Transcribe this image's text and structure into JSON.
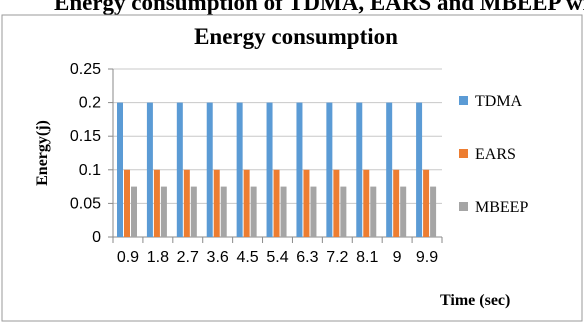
{
  "header_fragment": "Energy consumption of TDMA, EARS and MBEEP with respect to time (Energy",
  "chart_data": {
    "type": "bar",
    "title": "Energy consumption",
    "xlabel": "Time (sec)",
    "ylabel": "Energy(j)",
    "categories": [
      "0.9",
      "1.8",
      "2.7",
      "3.6",
      "4.5",
      "5.4",
      "6.3",
      "7.2",
      "8.1",
      "9",
      "9.9"
    ],
    "ylim": [
      0,
      0.25
    ],
    "yticks": [
      "0",
      "0.05",
      "0.1",
      "0.15",
      "0.2",
      "0.25"
    ],
    "grid": true,
    "legend_position": "right",
    "series": [
      {
        "name": "TDMA",
        "color": "#5b9bd5",
        "values": [
          0.2,
          0.2,
          0.2,
          0.2,
          0.2,
          0.2,
          0.2,
          0.2,
          0.2,
          0.2,
          0.2
        ]
      },
      {
        "name": "EARS",
        "color": "#ed7d31",
        "values": [
          0.1,
          0.1,
          0.1,
          0.1,
          0.1,
          0.1,
          0.1,
          0.1,
          0.1,
          0.1,
          0.1
        ]
      },
      {
        "name": "MBEEP",
        "color": "#a5a5a5",
        "values": [
          0.075,
          0.075,
          0.075,
          0.075,
          0.075,
          0.075,
          0.075,
          0.075,
          0.075,
          0.075,
          0.075
        ]
      }
    ]
  }
}
